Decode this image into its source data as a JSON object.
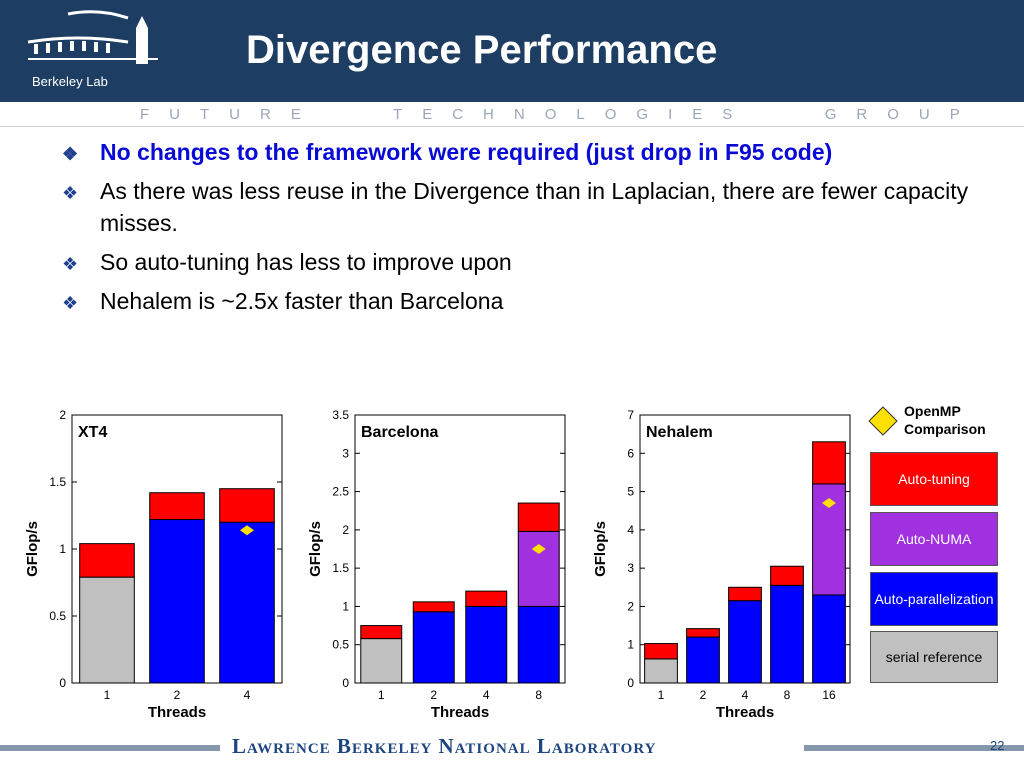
{
  "slide": {
    "title": "Divergence Performance",
    "logo_text": "Berkeley Lab",
    "group_banner": "FUTURE   TECHNOLOGIES   GROUP",
    "footer": "Lawrence Berkeley National Laboratory",
    "page_number": "22"
  },
  "bullets": [
    {
      "text": "No changes to the framework were required (just drop in F95 code)",
      "highlight": true
    },
    {
      "text": "As there was less reuse in the Divergence than in Laplacian, there are fewer capacity misses.",
      "highlight": false
    },
    {
      "text": "So auto-tuning has less to improve upon",
      "highlight": false
    },
    {
      "text": "Nehalem is ~2.5x faster than Barcelona",
      "highlight": false
    }
  ],
  "legend": {
    "openmp_label": "OpenMP Comparison",
    "items": [
      {
        "label": "Auto-tuning",
        "color": "#ff0000"
      },
      {
        "label": "Auto-NUMA",
        "color": "#a030e0"
      },
      {
        "label": "Auto-parallelization",
        "color": "#0000ff"
      },
      {
        "label": "serial reference",
        "color": "#c0c0c0"
      }
    ]
  },
  "colors": {
    "serial": "#c0c0c0",
    "parallel": "#0000ff",
    "numa": "#a030e0",
    "tuning": "#ff0000",
    "openmp": "#ffe000"
  },
  "chart_data": [
    {
      "type": "bar",
      "stacked": true,
      "title": "XT4",
      "xlabel": "Threads",
      "ylabel": "GFlop/s",
      "categories": [
        "1",
        "2",
        "4"
      ],
      "ylim": [
        0,
        2
      ],
      "yticks": [
        "0",
        "0.5",
        "1",
        "1.5",
        "2"
      ],
      "ytick_values": [
        0,
        0.5,
        1,
        1.5,
        2
      ],
      "series": [
        {
          "name": "serial reference",
          "values": [
            0.79,
            0,
            0
          ]
        },
        {
          "name": "Auto-parallelization",
          "values": [
            0,
            1.22,
            1.2
          ]
        },
        {
          "name": "Auto-NUMA",
          "values": [
            0,
            0,
            0
          ]
        },
        {
          "name": "Auto-tuning",
          "values": [
            0.25,
            0.2,
            0.25
          ]
        }
      ],
      "openmp": [
        null,
        null,
        1.14
      ]
    },
    {
      "type": "bar",
      "stacked": true,
      "title": "Barcelona",
      "xlabel": "Threads",
      "ylabel": "GFlop/s",
      "categories": [
        "1",
        "2",
        "4",
        "8"
      ],
      "ylim": [
        0,
        3.5
      ],
      "yticks": [
        "0",
        "0.5",
        "1",
        "1.5",
        "2",
        "2.5",
        "3",
        "3.5"
      ],
      "ytick_values": [
        0,
        0.5,
        1,
        1.5,
        2,
        2.5,
        3,
        3.5
      ],
      "series": [
        {
          "name": "serial reference",
          "values": [
            0.58,
            0,
            0,
            0
          ]
        },
        {
          "name": "Auto-parallelization",
          "values": [
            0,
            0.93,
            1.0,
            1.0
          ]
        },
        {
          "name": "Auto-NUMA",
          "values": [
            0,
            0,
            0,
            0.98
          ]
        },
        {
          "name": "Auto-tuning",
          "values": [
            0.17,
            0.13,
            0.2,
            0.37
          ]
        }
      ],
      "openmp": [
        null,
        null,
        null,
        1.75
      ]
    },
    {
      "type": "bar",
      "stacked": true,
      "title": "Nehalem",
      "xlabel": "Threads",
      "ylabel": "GFlop/s",
      "categories": [
        "1",
        "2",
        "4",
        "8",
        "16"
      ],
      "ylim": [
        0,
        7
      ],
      "yticks": [
        "0",
        "1",
        "2",
        "3",
        "4",
        "5",
        "6",
        "7"
      ],
      "ytick_values": [
        0,
        1,
        2,
        3,
        4,
        5,
        6,
        7
      ],
      "series": [
        {
          "name": "serial reference",
          "values": [
            0.63,
            0,
            0,
            0,
            0
          ]
        },
        {
          "name": "Auto-parallelization",
          "values": [
            0,
            1.2,
            2.15,
            2.55,
            2.3
          ]
        },
        {
          "name": "Auto-NUMA",
          "values": [
            0,
            0,
            0,
            0,
            2.9
          ]
        },
        {
          "name": "Auto-tuning",
          "values": [
            0.4,
            0.22,
            0.35,
            0.5,
            1.1
          ]
        }
      ],
      "openmp": [
        null,
        null,
        null,
        null,
        4.7
      ]
    }
  ]
}
